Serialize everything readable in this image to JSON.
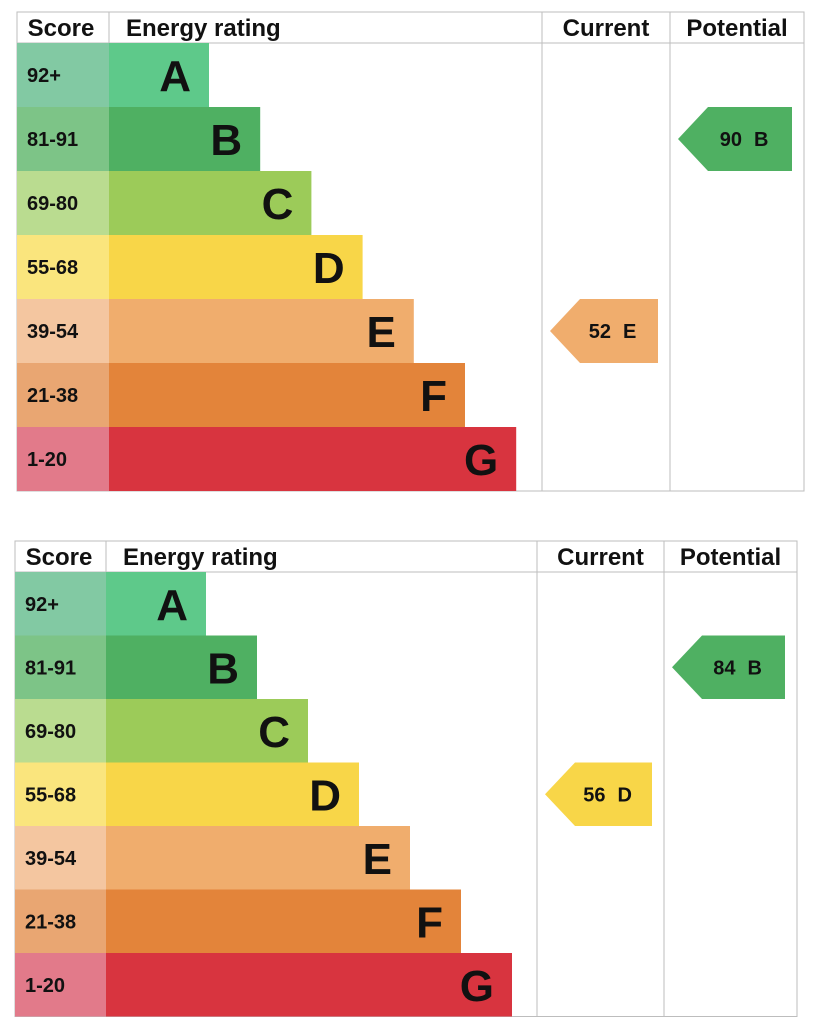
{
  "chart_data": [
    {
      "type": "table",
      "headers": {
        "score": "Score",
        "rating": "Energy rating",
        "current": "Current",
        "potential": "Potential"
      },
      "bands": [
        {
          "score": "92+",
          "letter": "A",
          "color": "#5ec98a",
          "score_bg": "#82c9a3"
        },
        {
          "score": "81-91",
          "letter": "B",
          "color": "#4fb062",
          "score_bg": "#7dc487"
        },
        {
          "score": "69-80",
          "letter": "C",
          "color": "#9ccb59",
          "score_bg": "#badc90"
        },
        {
          "score": "55-68",
          "letter": "D",
          "color": "#f8d648",
          "score_bg": "#fae57d"
        },
        {
          "score": "39-54",
          "letter": "E",
          "color": "#f0ad6d",
          "score_bg": "#f4c6a0"
        },
        {
          "score": "21-38",
          "letter": "F",
          "color": "#e3843a",
          "score_bg": "#e9a672"
        },
        {
          "score": "1-20",
          "letter": "G",
          "color": "#d8343f",
          "score_bg": "#e27a8a"
        }
      ],
      "current": {
        "value": 52,
        "band": "E",
        "color": "#f0ad6d"
      },
      "potential": {
        "value": 90,
        "band": "B",
        "color": "#4fb062"
      }
    },
    {
      "type": "table",
      "headers": {
        "score": "Score",
        "rating": "Energy rating",
        "current": "Current",
        "potential": "Potential"
      },
      "bands": [
        {
          "score": "92+",
          "letter": "A",
          "color": "#5ec98a",
          "score_bg": "#82c9a3"
        },
        {
          "score": "81-91",
          "letter": "B",
          "color": "#4fb062",
          "score_bg": "#7dc487"
        },
        {
          "score": "69-80",
          "letter": "C",
          "color": "#9ccb59",
          "score_bg": "#badc90"
        },
        {
          "score": "55-68",
          "letter": "D",
          "color": "#f8d648",
          "score_bg": "#fae57d"
        },
        {
          "score": "39-54",
          "letter": "E",
          "color": "#f0ad6d",
          "score_bg": "#f4c6a0"
        },
        {
          "score": "21-38",
          "letter": "F",
          "color": "#e3843a",
          "score_bg": "#e9a672"
        },
        {
          "score": "1-20",
          "letter": "G",
          "color": "#d8343f",
          "score_bg": "#e27a8a"
        }
      ],
      "current": {
        "value": 56,
        "band": "D",
        "color": "#f8d648"
      },
      "potential": {
        "value": 84,
        "band": "B",
        "color": "#4fb062"
      }
    }
  ]
}
